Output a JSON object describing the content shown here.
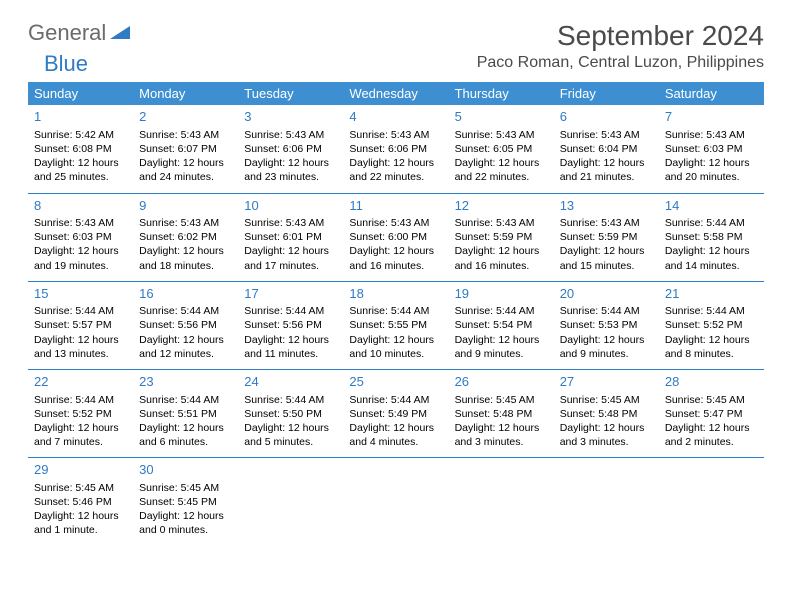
{
  "logo": {
    "word1": "General",
    "word2": "Blue"
  },
  "title": "September 2024",
  "subtitle": "Paco Roman, Central Luzon, Philippines",
  "colors": {
    "header_bg": "#3d8fd1",
    "header_text": "#ffffff",
    "accent": "#2f7bc4",
    "title_text": "#4a4a4a",
    "logo_gray": "#6b6b6b",
    "body_text": "#000000",
    "border": "#2f7bc4"
  },
  "dayHeaders": [
    "Sunday",
    "Monday",
    "Tuesday",
    "Wednesday",
    "Thursday",
    "Friday",
    "Saturday"
  ],
  "weeks": [
    [
      {
        "day": "1",
        "sunrise": "Sunrise: 5:42 AM",
        "sunset": "Sunset: 6:08 PM",
        "daylight1": "Daylight: 12 hours",
        "daylight2": "and 25 minutes."
      },
      {
        "day": "2",
        "sunrise": "Sunrise: 5:43 AM",
        "sunset": "Sunset: 6:07 PM",
        "daylight1": "Daylight: 12 hours",
        "daylight2": "and 24 minutes."
      },
      {
        "day": "3",
        "sunrise": "Sunrise: 5:43 AM",
        "sunset": "Sunset: 6:06 PM",
        "daylight1": "Daylight: 12 hours",
        "daylight2": "and 23 minutes."
      },
      {
        "day": "4",
        "sunrise": "Sunrise: 5:43 AM",
        "sunset": "Sunset: 6:06 PM",
        "daylight1": "Daylight: 12 hours",
        "daylight2": "and 22 minutes."
      },
      {
        "day": "5",
        "sunrise": "Sunrise: 5:43 AM",
        "sunset": "Sunset: 6:05 PM",
        "daylight1": "Daylight: 12 hours",
        "daylight2": "and 22 minutes."
      },
      {
        "day": "6",
        "sunrise": "Sunrise: 5:43 AM",
        "sunset": "Sunset: 6:04 PM",
        "daylight1": "Daylight: 12 hours",
        "daylight2": "and 21 minutes."
      },
      {
        "day": "7",
        "sunrise": "Sunrise: 5:43 AM",
        "sunset": "Sunset: 6:03 PM",
        "daylight1": "Daylight: 12 hours",
        "daylight2": "and 20 minutes."
      }
    ],
    [
      {
        "day": "8",
        "sunrise": "Sunrise: 5:43 AM",
        "sunset": "Sunset: 6:03 PM",
        "daylight1": "Daylight: 12 hours",
        "daylight2": "and 19 minutes."
      },
      {
        "day": "9",
        "sunrise": "Sunrise: 5:43 AM",
        "sunset": "Sunset: 6:02 PM",
        "daylight1": "Daylight: 12 hours",
        "daylight2": "and 18 minutes."
      },
      {
        "day": "10",
        "sunrise": "Sunrise: 5:43 AM",
        "sunset": "Sunset: 6:01 PM",
        "daylight1": "Daylight: 12 hours",
        "daylight2": "and 17 minutes."
      },
      {
        "day": "11",
        "sunrise": "Sunrise: 5:43 AM",
        "sunset": "Sunset: 6:00 PM",
        "daylight1": "Daylight: 12 hours",
        "daylight2": "and 16 minutes."
      },
      {
        "day": "12",
        "sunrise": "Sunrise: 5:43 AM",
        "sunset": "Sunset: 5:59 PM",
        "daylight1": "Daylight: 12 hours",
        "daylight2": "and 16 minutes."
      },
      {
        "day": "13",
        "sunrise": "Sunrise: 5:43 AM",
        "sunset": "Sunset: 5:59 PM",
        "daylight1": "Daylight: 12 hours",
        "daylight2": "and 15 minutes."
      },
      {
        "day": "14",
        "sunrise": "Sunrise: 5:44 AM",
        "sunset": "Sunset: 5:58 PM",
        "daylight1": "Daylight: 12 hours",
        "daylight2": "and 14 minutes."
      }
    ],
    [
      {
        "day": "15",
        "sunrise": "Sunrise: 5:44 AM",
        "sunset": "Sunset: 5:57 PM",
        "daylight1": "Daylight: 12 hours",
        "daylight2": "and 13 minutes."
      },
      {
        "day": "16",
        "sunrise": "Sunrise: 5:44 AM",
        "sunset": "Sunset: 5:56 PM",
        "daylight1": "Daylight: 12 hours",
        "daylight2": "and 12 minutes."
      },
      {
        "day": "17",
        "sunrise": "Sunrise: 5:44 AM",
        "sunset": "Sunset: 5:56 PM",
        "daylight1": "Daylight: 12 hours",
        "daylight2": "and 11 minutes."
      },
      {
        "day": "18",
        "sunrise": "Sunrise: 5:44 AM",
        "sunset": "Sunset: 5:55 PM",
        "daylight1": "Daylight: 12 hours",
        "daylight2": "and 10 minutes."
      },
      {
        "day": "19",
        "sunrise": "Sunrise: 5:44 AM",
        "sunset": "Sunset: 5:54 PM",
        "daylight1": "Daylight: 12 hours",
        "daylight2": "and 9 minutes."
      },
      {
        "day": "20",
        "sunrise": "Sunrise: 5:44 AM",
        "sunset": "Sunset: 5:53 PM",
        "daylight1": "Daylight: 12 hours",
        "daylight2": "and 9 minutes."
      },
      {
        "day": "21",
        "sunrise": "Sunrise: 5:44 AM",
        "sunset": "Sunset: 5:52 PM",
        "daylight1": "Daylight: 12 hours",
        "daylight2": "and 8 minutes."
      }
    ],
    [
      {
        "day": "22",
        "sunrise": "Sunrise: 5:44 AM",
        "sunset": "Sunset: 5:52 PM",
        "daylight1": "Daylight: 12 hours",
        "daylight2": "and 7 minutes."
      },
      {
        "day": "23",
        "sunrise": "Sunrise: 5:44 AM",
        "sunset": "Sunset: 5:51 PM",
        "daylight1": "Daylight: 12 hours",
        "daylight2": "and 6 minutes."
      },
      {
        "day": "24",
        "sunrise": "Sunrise: 5:44 AM",
        "sunset": "Sunset: 5:50 PM",
        "daylight1": "Daylight: 12 hours",
        "daylight2": "and 5 minutes."
      },
      {
        "day": "25",
        "sunrise": "Sunrise: 5:44 AM",
        "sunset": "Sunset: 5:49 PM",
        "daylight1": "Daylight: 12 hours",
        "daylight2": "and 4 minutes."
      },
      {
        "day": "26",
        "sunrise": "Sunrise: 5:45 AM",
        "sunset": "Sunset: 5:48 PM",
        "daylight1": "Daylight: 12 hours",
        "daylight2": "and 3 minutes."
      },
      {
        "day": "27",
        "sunrise": "Sunrise: 5:45 AM",
        "sunset": "Sunset: 5:48 PM",
        "daylight1": "Daylight: 12 hours",
        "daylight2": "and 3 minutes."
      },
      {
        "day": "28",
        "sunrise": "Sunrise: 5:45 AM",
        "sunset": "Sunset: 5:47 PM",
        "daylight1": "Daylight: 12 hours",
        "daylight2": "and 2 minutes."
      }
    ],
    [
      {
        "day": "29",
        "sunrise": "Sunrise: 5:45 AM",
        "sunset": "Sunset: 5:46 PM",
        "daylight1": "Daylight: 12 hours",
        "daylight2": "and 1 minute."
      },
      {
        "day": "30",
        "sunrise": "Sunrise: 5:45 AM",
        "sunset": "Sunset: 5:45 PM",
        "daylight1": "Daylight: 12 hours",
        "daylight2": "and 0 minutes."
      },
      null,
      null,
      null,
      null,
      null
    ]
  ]
}
